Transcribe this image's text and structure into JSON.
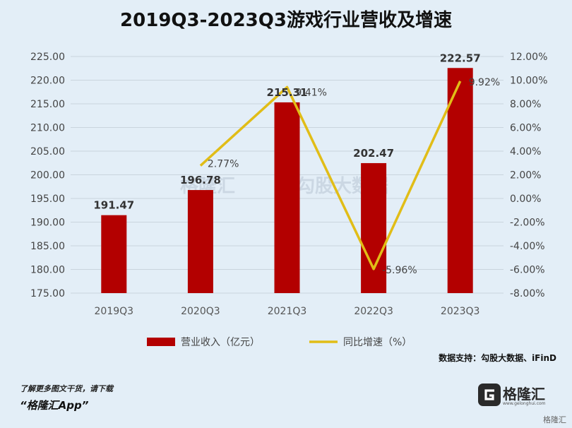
{
  "title": "2019Q3-2023Q3游戏行业营收及增速",
  "source": "数据支持：勾股大数据、iFinD",
  "footer": {
    "line1": "了解更多图文干货，请下载",
    "line2": "“格隆汇App”"
  },
  "brand": {
    "name": "格隆汇",
    "sub": "www.gelonghui.com",
    "corner": "格隆汇"
  },
  "colors": {
    "bar": "#b30000",
    "line": "#e1bd17",
    "grid": "#c9d4dd",
    "background": "#e3eef7"
  },
  "chart_data": {
    "type": "bar",
    "categories": [
      "2019Q3",
      "2020Q3",
      "2021Q3",
      "2022Q3",
      "2023Q3"
    ],
    "series": [
      {
        "name": "营业收入（亿元）",
        "type": "bar",
        "axis": "left",
        "values": [
          191.47,
          196.78,
          215.31,
          202.47,
          222.57
        ],
        "labels": [
          "191.47",
          "196.78",
          "215.31",
          "202.47",
          "222.57"
        ]
      },
      {
        "name": "同比增速（%）",
        "type": "line",
        "axis": "right",
        "values": [
          null,
          2.77,
          9.41,
          -5.96,
          9.92
        ],
        "labels": [
          "",
          "2.77%",
          "9.41%",
          "-5.96%",
          "9.92%"
        ]
      }
    ],
    "left_axis": {
      "min": 175,
      "max": 225,
      "ticks": [
        "175.00",
        "180.00",
        "185.00",
        "190.00",
        "195.00",
        "200.00",
        "205.00",
        "210.00",
        "215.00",
        "220.00",
        "225.00"
      ]
    },
    "right_axis": {
      "min": -8,
      "max": 12,
      "ticks": [
        "-8.00%",
        "-6.00%",
        "-4.00%",
        "-2.00%",
        "0.00%",
        "2.00%",
        "4.00%",
        "6.00%",
        "8.00%",
        "10.00%",
        "12.00%"
      ]
    },
    "grid": true,
    "legend_position": "bottom"
  }
}
